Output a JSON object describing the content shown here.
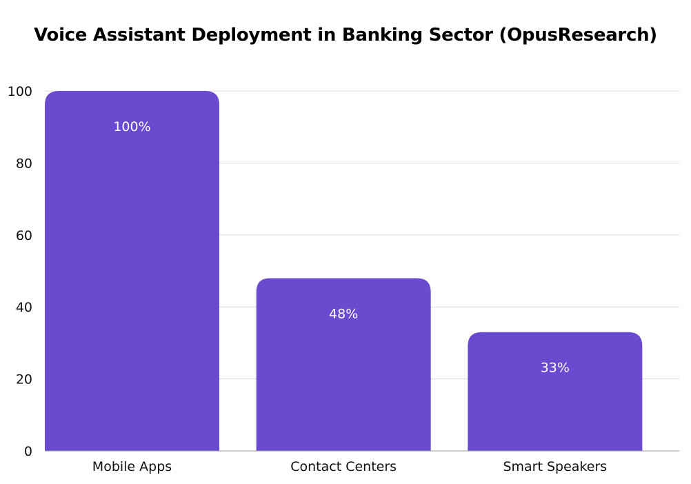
{
  "chart_data": {
    "type": "bar",
    "title": "Voice Assistant Deployment in Banking Sector (OpusResearch)",
    "categories": [
      "Mobile Apps",
      "Contact Centers",
      "Smart Speakers"
    ],
    "values": [
      100,
      48,
      33
    ],
    "data_labels": [
      "100%",
      "48%",
      "33%"
    ],
    "xlabel": "",
    "ylabel": "",
    "ylim": [
      0,
      100
    ],
    "yticks": [
      0,
      20,
      40,
      60,
      80,
      100
    ],
    "grid": true,
    "legend": "none",
    "colors": {
      "bar": "#6a4bcf",
      "grid": "#d9d9d9",
      "axis": "#999999"
    }
  }
}
